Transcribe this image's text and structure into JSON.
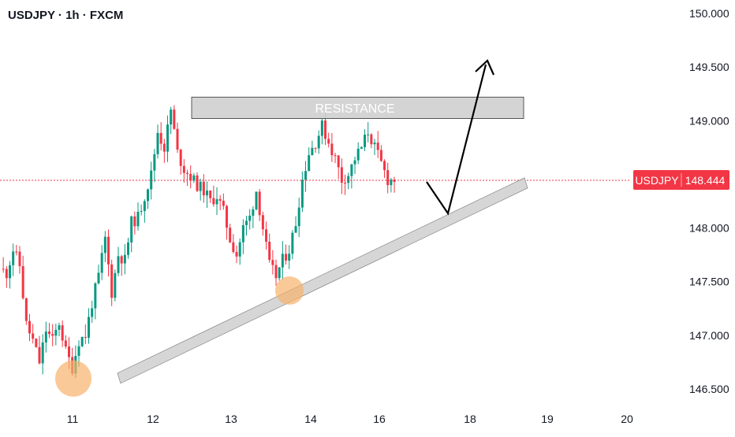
{
  "header": {
    "title": "USDJPY · 1h · FXCM"
  },
  "colors": {
    "up": "#089981",
    "down": "#f23645",
    "price_tag_bg": "#f23645",
    "zone_fill": "#cfcfcf",
    "zone_stroke": "#555555",
    "circle_fill": "#f7b26b",
    "arrow": "#000000"
  },
  "annotations": {
    "resistance_label": "RESISTANCE"
  },
  "price_tag": {
    "symbol": "USDJPY",
    "value": "148.444"
  },
  "chart_data": {
    "type": "candlestick",
    "title": "USDJPY · 1h · FXCM",
    "x_tick_labels": [
      "11",
      "12",
      "13",
      "14",
      "16",
      "18",
      "19",
      "20"
    ],
    "y_tick_labels": [
      "146.500",
      "147.000",
      "147.500",
      "148.000",
      "149.000",
      "149.500",
      "150.000"
    ],
    "ylim": [
      146.4,
      150.05
    ],
    "last_price": 148.444,
    "path_close": [
      [
        0,
        147.62
      ],
      [
        2,
        147.58
      ],
      [
        4,
        147.8
      ],
      [
        6,
        147.65
      ],
      [
        8,
        147.1
      ],
      [
        10,
        146.95
      ],
      [
        12,
        146.75
      ],
      [
        14,
        147.05
      ],
      [
        16,
        146.95
      ],
      [
        18,
        147.12
      ],
      [
        20,
        146.85
      ],
      [
        22,
        146.7
      ],
      [
        24,
        146.95
      ],
      [
        26,
        147.0
      ],
      [
        28,
        147.3
      ],
      [
        30,
        147.55
      ],
      [
        32,
        147.9
      ],
      [
        34,
        147.4
      ],
      [
        36,
        147.75
      ],
      [
        38,
        147.7
      ],
      [
        40,
        148.05
      ],
      [
        42,
        148.1
      ],
      [
        44,
        148.3
      ],
      [
        46,
        148.5
      ],
      [
        48,
        148.9
      ],
      [
        50,
        148.75
      ],
      [
        52,
        149.1
      ],
      [
        54,
        148.7
      ],
      [
        56,
        148.55
      ],
      [
        58,
        148.48
      ],
      [
        60,
        148.4
      ],
      [
        62,
        148.35
      ],
      [
        64,
        148.25
      ],
      [
        66,
        148.3
      ],
      [
        68,
        148.15
      ],
      [
        70,
        147.9
      ],
      [
        72,
        147.75
      ],
      [
        74,
        148.0
      ],
      [
        76,
        148.1
      ],
      [
        78,
        148.35
      ],
      [
        80,
        148.0
      ],
      [
        82,
        147.65
      ],
      [
        84,
        147.55
      ],
      [
        86,
        147.7
      ],
      [
        88,
        147.8
      ],
      [
        90,
        148.05
      ],
      [
        92,
        148.45
      ],
      [
        94,
        148.7
      ],
      [
        96,
        148.8
      ],
      [
        98,
        148.95
      ],
      [
        100,
        148.8
      ],
      [
        102,
        148.65
      ],
      [
        104,
        148.45
      ],
      [
        106,
        148.5
      ],
      [
        108,
        148.65
      ],
      [
        110,
        148.75
      ],
      [
        112,
        148.9
      ],
      [
        114,
        148.75
      ],
      [
        116,
        148.6
      ],
      [
        118,
        148.45
      ],
      [
        120,
        148.45
      ]
    ],
    "resistance_zone": {
      "x": [
        52,
        150
      ],
      "y": [
        149.02,
        149.22
      ]
    },
    "support_trendline": {
      "x": [
        17.5,
        150
      ],
      "y": [
        146.6,
        148.42
      ]
    },
    "projection_path": [
      [
        120,
        148.444
      ],
      [
        128,
        148.17
      ],
      [
        141,
        149.62
      ]
    ],
    "highlighted_lows": [
      [
        18.5,
        146.7
      ],
      [
        82,
        147.52
      ]
    ]
  }
}
